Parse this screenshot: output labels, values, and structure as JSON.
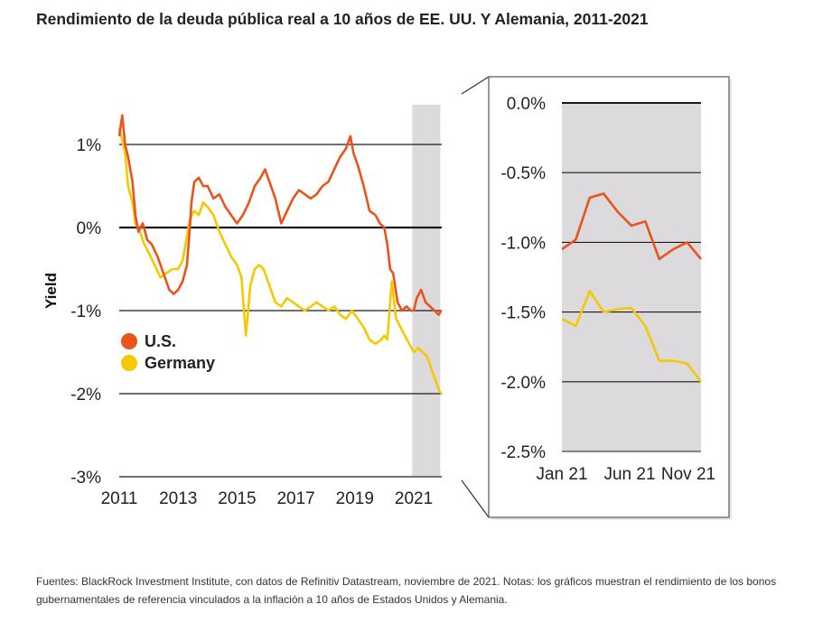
{
  "title": "Rendimiento de la deuda pública real a 10 años de EE. UU. Y Alemania, 2011-2021",
  "footer": "Fuentes: BlackRock Investment Institute, con datos de Refinitiv Datastream, noviembre de 2021. Notas: los gráficos muestran el rendimiento de los bonos gubernamentales de referencia vinculados a la inflación a 10 años de Estados Unidos y Alemania.",
  "colors": {
    "us": "#e8541a",
    "germany": "#f5c800",
    "highlight": "#dcdadd",
    "grid": "#1a1a1a"
  },
  "chart_data": [
    {
      "type": "line",
      "ylabel": "Yield",
      "xlabel": "",
      "xlim": [
        2011,
        2021.95
      ],
      "ylim": [
        -3,
        1.5
      ],
      "xticks": [
        "2011",
        "2013",
        "2015",
        "2017",
        "2019",
        "2021"
      ],
      "yticks": [
        "1%",
        "0%",
        "-1%",
        "-2%",
        "-3%"
      ],
      "highlight_range": [
        2020.95,
        2021.9
      ],
      "legend": "left, inside plot",
      "series": [
        {
          "name": "U.S.",
          "color": "#e8541a",
          "points": [
            [
              2011.0,
              1.1
            ],
            [
              2011.1,
              1.35
            ],
            [
              2011.2,
              1.0
            ],
            [
              2011.3,
              0.85
            ],
            [
              2011.45,
              0.55
            ],
            [
              2011.55,
              0.15
            ],
            [
              2011.65,
              -0.05
            ],
            [
              2011.8,
              0.05
            ],
            [
              2011.95,
              -0.15
            ],
            [
              2012.1,
              -0.2
            ],
            [
              2012.3,
              -0.35
            ],
            [
              2012.5,
              -0.55
            ],
            [
              2012.7,
              -0.75
            ],
            [
              2012.85,
              -0.8
            ],
            [
              2013.0,
              -0.75
            ],
            [
              2013.15,
              -0.65
            ],
            [
              2013.3,
              -0.45
            ],
            [
              2013.4,
              0.0
            ],
            [
              2013.45,
              0.3
            ],
            [
              2013.55,
              0.55
            ],
            [
              2013.7,
              0.6
            ],
            [
              2013.85,
              0.5
            ],
            [
              2014.0,
              0.5
            ],
            [
              2014.2,
              0.35
            ],
            [
              2014.4,
              0.4
            ],
            [
              2014.6,
              0.25
            ],
            [
              2014.8,
              0.15
            ],
            [
              2015.0,
              0.05
            ],
            [
              2015.2,
              0.15
            ],
            [
              2015.4,
              0.3
            ],
            [
              2015.6,
              0.5
            ],
            [
              2015.8,
              0.6
            ],
            [
              2015.95,
              0.7
            ],
            [
              2016.1,
              0.55
            ],
            [
              2016.3,
              0.35
            ],
            [
              2016.5,
              0.05
            ],
            [
              2016.7,
              0.2
            ],
            [
              2016.9,
              0.35
            ],
            [
              2017.1,
              0.45
            ],
            [
              2017.3,
              0.4
            ],
            [
              2017.5,
              0.35
            ],
            [
              2017.7,
              0.4
            ],
            [
              2017.9,
              0.5
            ],
            [
              2018.1,
              0.55
            ],
            [
              2018.3,
              0.7
            ],
            [
              2018.5,
              0.85
            ],
            [
              2018.7,
              0.95
            ],
            [
              2018.85,
              1.1
            ],
            [
              2018.95,
              0.9
            ],
            [
              2019.1,
              0.75
            ],
            [
              2019.3,
              0.5
            ],
            [
              2019.5,
              0.2
            ],
            [
              2019.7,
              0.15
            ],
            [
              2019.85,
              0.05
            ],
            [
              2020.0,
              0.0
            ],
            [
              2020.1,
              -0.2
            ],
            [
              2020.2,
              -0.5
            ],
            [
              2020.3,
              -0.55
            ],
            [
              2020.45,
              -0.9
            ],
            [
              2020.6,
              -1.0
            ],
            [
              2020.75,
              -0.95
            ],
            [
              2020.9,
              -1.0
            ],
            [
              2021.0,
              -1.0
            ],
            [
              2021.1,
              -0.85
            ],
            [
              2021.25,
              -0.75
            ],
            [
              2021.4,
              -0.9
            ],
            [
              2021.55,
              -0.95
            ],
            [
              2021.7,
              -1.0
            ],
            [
              2021.85,
              -1.05
            ],
            [
              2021.93,
              -1.0
            ]
          ]
        },
        {
          "name": "Germany",
          "color": "#f5c800",
          "points": [
            [
              2011.0,
              1.2
            ],
            [
              2011.1,
              1.05
            ],
            [
              2011.2,
              0.9
            ],
            [
              2011.3,
              0.5
            ],
            [
              2011.45,
              0.3
            ],
            [
              2011.55,
              0.05
            ],
            [
              2011.7,
              -0.05
            ],
            [
              2011.85,
              -0.2
            ],
            [
              2012.0,
              -0.3
            ],
            [
              2012.2,
              -0.45
            ],
            [
              2012.4,
              -0.6
            ],
            [
              2012.6,
              -0.55
            ],
            [
              2012.8,
              -0.5
            ],
            [
              2013.0,
              -0.5
            ],
            [
              2013.15,
              -0.4
            ],
            [
              2013.3,
              -0.1
            ],
            [
              2013.4,
              0.1
            ],
            [
              2013.55,
              0.2
            ],
            [
              2013.7,
              0.15
            ],
            [
              2013.85,
              0.3
            ],
            [
              2014.0,
              0.25
            ],
            [
              2014.2,
              0.15
            ],
            [
              2014.4,
              -0.05
            ],
            [
              2014.6,
              -0.2
            ],
            [
              2014.8,
              -0.35
            ],
            [
              2015.0,
              -0.45
            ],
            [
              2015.15,
              -0.6
            ],
            [
              2015.3,
              -1.3
            ],
            [
              2015.45,
              -0.7
            ],
            [
              2015.6,
              -0.5
            ],
            [
              2015.75,
              -0.45
            ],
            [
              2015.9,
              -0.5
            ],
            [
              2016.1,
              -0.7
            ],
            [
              2016.3,
              -0.9
            ],
            [
              2016.5,
              -0.95
            ],
            [
              2016.7,
              -0.85
            ],
            [
              2016.9,
              -0.9
            ],
            [
              2017.1,
              -0.95
            ],
            [
              2017.3,
              -1.0
            ],
            [
              2017.5,
              -0.95
            ],
            [
              2017.7,
              -0.9
            ],
            [
              2017.9,
              -0.95
            ],
            [
              2018.1,
              -1.0
            ],
            [
              2018.3,
              -0.95
            ],
            [
              2018.5,
              -1.05
            ],
            [
              2018.7,
              -1.1
            ],
            [
              2018.9,
              -1.0
            ],
            [
              2019.1,
              -1.1
            ],
            [
              2019.3,
              -1.2
            ],
            [
              2019.5,
              -1.35
            ],
            [
              2019.7,
              -1.4
            ],
            [
              2019.9,
              -1.35
            ],
            [
              2020.0,
              -1.3
            ],
            [
              2020.1,
              -1.35
            ],
            [
              2020.2,
              -0.9
            ],
            [
              2020.25,
              -0.65
            ],
            [
              2020.4,
              -1.1
            ],
            [
              2020.55,
              -1.2
            ],
            [
              2020.7,
              -1.3
            ],
            [
              2020.85,
              -1.4
            ],
            [
              2021.0,
              -1.5
            ],
            [
              2021.15,
              -1.45
            ],
            [
              2021.3,
              -1.5
            ],
            [
              2021.45,
              -1.55
            ],
            [
              2021.6,
              -1.7
            ],
            [
              2021.75,
              -1.85
            ],
            [
              2021.85,
              -1.95
            ],
            [
              2021.93,
              -2.0
            ]
          ]
        }
      ]
    },
    {
      "type": "line",
      "xlabel": "",
      "ylabel": "",
      "xticks": [
        "Jan 21",
        "Jun 21",
        "Nov 21"
      ],
      "yticks": [
        "0.0%",
        "-0.5%",
        "-1.0%",
        "-1.5%",
        "-2.0%",
        "-2.5%"
      ],
      "ylim": [
        -2.5,
        0.0
      ],
      "series": [
        {
          "name": "U.S.",
          "color": "#e8541a",
          "x": [
            "Jan 21",
            "Feb 21",
            "Mar 21",
            "Apr 21",
            "May 21",
            "Jun 21",
            "Jul 21",
            "Aug 21",
            "Sep 21",
            "Oct 21",
            "Nov 21"
          ],
          "values": [
            -1.05,
            -0.98,
            -0.68,
            -0.65,
            -0.78,
            -0.88,
            -0.85,
            -1.12,
            -1.05,
            -1.0,
            -1.12
          ]
        },
        {
          "name": "Germany",
          "color": "#f5c800",
          "x": [
            "Jan 21",
            "Feb 21",
            "Mar 21",
            "Apr 21",
            "May 21",
            "Jun 21",
            "Jul 21",
            "Aug 21",
            "Sep 21",
            "Oct 21",
            "Nov 21"
          ],
          "values": [
            -1.55,
            -1.6,
            -1.35,
            -1.5,
            -1.48,
            -1.47,
            -1.6,
            -1.85,
            -1.85,
            -1.87,
            -2.0
          ]
        }
      ]
    }
  ]
}
